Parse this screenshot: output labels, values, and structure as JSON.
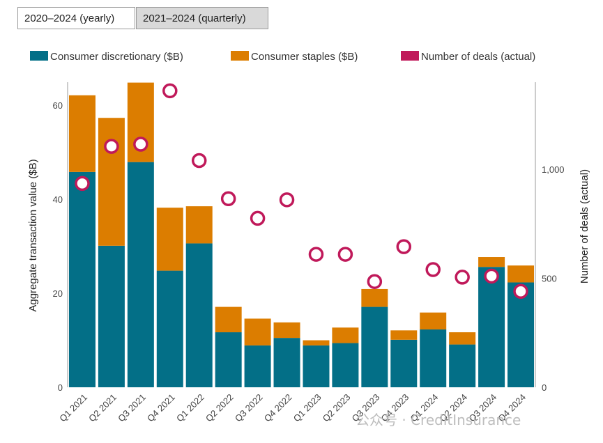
{
  "tabs": [
    {
      "label": "2020–2024 (yearly)",
      "active": false
    },
    {
      "label": "2021–2024 (quarterly)",
      "active": true
    }
  ],
  "watermark": "公众号 · CreditInsurance",
  "colors": {
    "discretionary": "#036f87",
    "staples": "#dc7d00",
    "deals": "#c0195a",
    "axis": "#9a9a9a"
  },
  "chart_data": {
    "type": "bar",
    "stacked": true,
    "categories": [
      "Q1 2021",
      "Q2 2021",
      "Q3 2021",
      "Q4 2021",
      "Q1 2022",
      "Q2 2022",
      "Q3 2022",
      "Q4 2022",
      "Q1 2023",
      "Q2 2023",
      "Q3 2023",
      "Q4 2023",
      "Q1 2024",
      "Q2 2024",
      "Q3 2024",
      "Q4 2024"
    ],
    "series": [
      {
        "name": "Consumer discretionary ($B)",
        "axis": "left",
        "type": "bar",
        "color": "#036f87",
        "values": [
          45.8,
          30.1,
          47.9,
          24.8,
          30.6,
          11.7,
          8.9,
          10.5,
          8.9,
          9.4,
          17.1,
          10.1,
          12.3,
          9.1,
          25.6,
          22.3
        ]
      },
      {
        "name": "Consumer staples ($B)",
        "axis": "left",
        "type": "bar",
        "color": "#dc7d00",
        "values": [
          16.3,
          27.2,
          16.9,
          13.4,
          7.9,
          5.4,
          5.7,
          3.3,
          1.1,
          3.3,
          3.8,
          2.0,
          3.6,
          2.6,
          2.1,
          3.6
        ]
      },
      {
        "name": "Number of deals (actual)",
        "axis": "right",
        "type": "scatter",
        "color": "#c0195a",
        "values": [
          935,
          1105,
          1115,
          1360,
          1040,
          865,
          775,
          860,
          610,
          610,
          485,
          645,
          540,
          505,
          510,
          440
        ]
      }
    ],
    "ylabel": "Aggregate transaction value ($B)",
    "y2label": "Number of deals (actual)",
    "ylim": [
      0,
      65
    ],
    "y2lim": [
      0,
      1400
    ],
    "yticks": [
      "0",
      "20",
      "40",
      "60"
    ],
    "y2ticks": [
      "0",
      "500",
      "1,000"
    ],
    "legend_position": "top"
  }
}
